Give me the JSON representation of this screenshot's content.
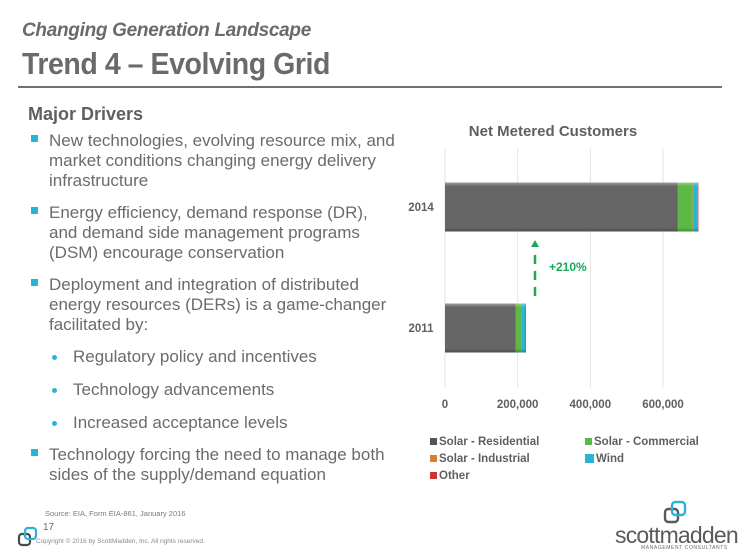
{
  "header": {
    "subtitle": "Changing Generation Landscape",
    "title": "Trend 4 – Evolving Grid"
  },
  "drivers": {
    "heading": "Major Drivers",
    "bullets": [
      {
        "text": "New technologies, evolving resource mix, and market conditions changing energy delivery infrastructure"
      },
      {
        "text": "Energy efficiency, demand response (DR), and demand side management programs (DSM) encourage conservation"
      },
      {
        "text": "Deployment and integration of distributed energy resources (DERs) is a game-changer facilitated by:",
        "sub": [
          "Regulatory policy and incentives",
          "Technology advancements",
          "Increased acceptance levels"
        ]
      },
      {
        "text": "Technology forcing the need to manage both sides of the supply/demand equation"
      }
    ]
  },
  "footer": {
    "source": "Source:  EIA, Form EIA-861, January 2016",
    "page_number": "17",
    "copyright": "Copyright © 2016 by ScottMadden,  Inc. All rights reserved.",
    "brand_name": "scottmadden",
    "brand_tagline": "MANAGEMENT CONSULTANTS"
  },
  "colors": {
    "accent": "#2ab3d6",
    "text": "#6b6b6b",
    "annotation": "#1aa85a"
  },
  "chart_data": {
    "type": "bar",
    "orientation": "horizontal",
    "stacked": true,
    "title": "Net Metered Customers",
    "categories": [
      "2011",
      "2014"
    ],
    "series": [
      {
        "name": "Solar - Residential",
        "color": "#666666",
        "values": [
          195000,
          641000
        ]
      },
      {
        "name": "Solar - Commercial",
        "color": "#5db845",
        "values": [
          16000,
          41000
        ]
      },
      {
        "name": "Solar - Industrial",
        "color": "#e07b2a",
        "values": [
          500,
          1000
        ]
      },
      {
        "name": "Wind",
        "color": "#2ab3d6",
        "values": [
          10000,
          13000
        ]
      },
      {
        "name": "Other",
        "color": "#cc3333",
        "values": [
          300,
          500
        ]
      }
    ],
    "xlim": [
      0,
      700000
    ],
    "xticks": [
      0,
      200000,
      400000,
      600000
    ],
    "xtick_labels": [
      "0",
      "200,000",
      "400,000",
      "600,000"
    ],
    "grid": true,
    "legend_position": "bottom",
    "annotation": {
      "text": "+210%",
      "from": "2011",
      "to": "2014",
      "style": "dashed-arrow-up"
    }
  }
}
